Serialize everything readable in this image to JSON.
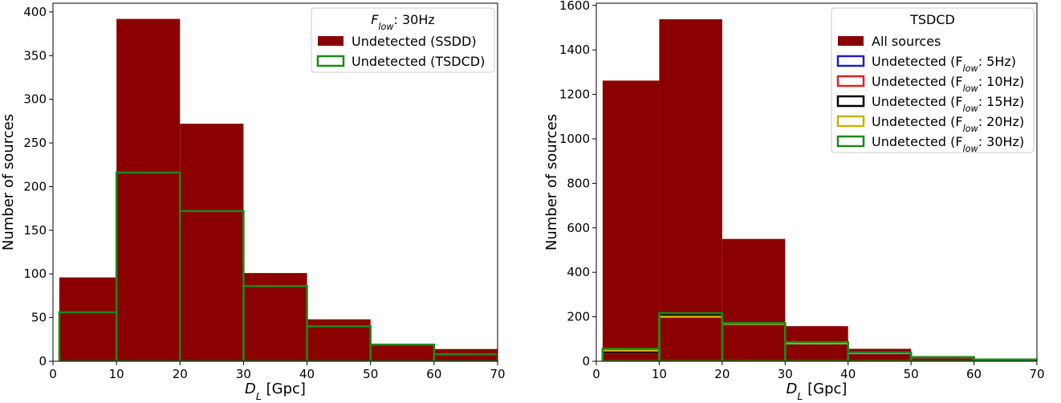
{
  "chart_data": [
    {
      "type": "histogram",
      "xlabel_main": "D",
      "xlabel_sub": "L",
      "xlabel_unit": " [Gpc]",
      "ylabel": "Number of sources",
      "xlim": [
        0,
        70
      ],
      "ylim": [
        0,
        410
      ],
      "xticks": [
        0,
        10,
        20,
        30,
        40,
        50,
        60,
        70
      ],
      "yticks": [
        0,
        50,
        100,
        150,
        200,
        250,
        300,
        350,
        400
      ],
      "legend_position": "top-right",
      "legend_title": {
        "main": "F",
        "sub": "low",
        "rest": ": 30Hz"
      },
      "bins": [
        [
          1,
          10
        ],
        [
          10,
          20
        ],
        [
          20,
          30
        ],
        [
          30,
          40
        ],
        [
          40,
          50
        ],
        [
          50,
          60
        ],
        [
          60,
          70
        ]
      ],
      "series": [
        {
          "label_pre": "Undetected (SSDD)",
          "label_sub": "",
          "label_post": "",
          "style": "filled",
          "color": "#8b0000",
          "values": [
            96,
            392,
            272,
            101,
            48,
            18,
            14
          ]
        },
        {
          "label_pre": "Undetected (TSDCD)",
          "label_sub": "",
          "label_post": "",
          "style": "step",
          "color": "#1a8a1a",
          "values": [
            56,
            216,
            172,
            86,
            40,
            19,
            8
          ]
        }
      ]
    },
    {
      "type": "histogram",
      "xlabel_main": "D",
      "xlabel_sub": "L",
      "xlabel_unit": " [Gpc]",
      "ylabel": "Number of sources",
      "xlim": [
        0,
        70
      ],
      "ylim": [
        0,
        1610
      ],
      "xticks": [
        0,
        10,
        20,
        30,
        40,
        50,
        60,
        70
      ],
      "yticks": [
        0,
        200,
        400,
        600,
        800,
        1000,
        1200,
        1400,
        1600
      ],
      "legend_position": "top-right",
      "legend_title": {
        "main": "TSDCD",
        "sub": "",
        "rest": ""
      },
      "bins": [
        [
          1,
          10
        ],
        [
          10,
          20
        ],
        [
          20,
          30
        ],
        [
          30,
          40
        ],
        [
          40,
          50
        ],
        [
          50,
          60
        ],
        [
          60,
          70
        ]
      ],
      "series": [
        {
          "label_pre": "All sources",
          "label_sub": "",
          "label_post": "",
          "style": "filled",
          "color": "#8b0000",
          "values": [
            1262,
            1538,
            550,
            158,
            56,
            22,
            10
          ]
        },
        {
          "label_pre": "Undetected (F",
          "label_sub": "low",
          "label_post": ": 5Hz)",
          "style": "step",
          "color": "#2020c0",
          "values": [
            38,
            205,
            165,
            75,
            33,
            15,
            6
          ]
        },
        {
          "label_pre": "Undetected (F",
          "label_sub": "low",
          "label_post": ": 10Hz)",
          "style": "step",
          "color": "#e02020",
          "values": [
            40,
            208,
            166,
            77,
            34,
            16,
            7
          ]
        },
        {
          "label_pre": "Undetected (F",
          "label_sub": "low",
          "label_post": ": 15Hz)",
          "style": "step",
          "color": "#000000",
          "values": [
            42,
            210,
            167,
            78,
            36,
            17,
            7
          ]
        },
        {
          "label_pre": "Undetected (F",
          "label_sub": "low",
          "label_post": ": 20Hz)",
          "style": "step",
          "color": "#c8b400",
          "values": [
            48,
            200,
            168,
            80,
            37,
            18,
            8
          ]
        },
        {
          "label_pre": "Undetected (F",
          "label_sub": "low",
          "label_post": ": 30Hz)",
          "style": "step",
          "color": "#1a8a1a",
          "values": [
            56,
            216,
            172,
            86,
            40,
            19,
            8
          ]
        }
      ]
    }
  ]
}
